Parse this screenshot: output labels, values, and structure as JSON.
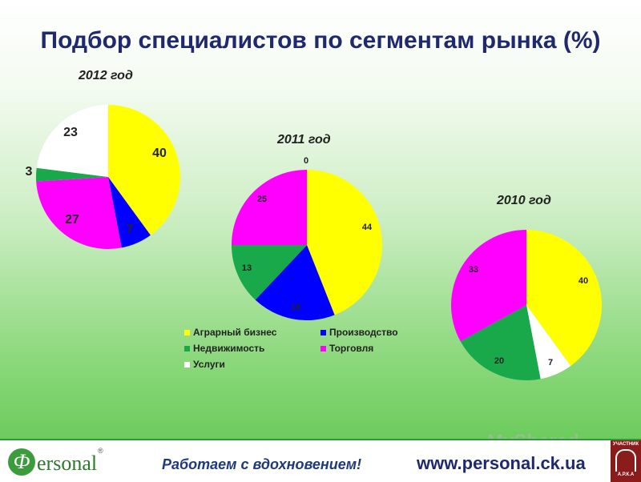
{
  "title": "Подбор специалистов по сегментам рынка (%)",
  "legend": [
    {
      "label": "Аграрный бизнес",
      "color": "#ffff00"
    },
    {
      "label": "Производство",
      "color": "#0000ff"
    },
    {
      "label": "Недвижимость",
      "color": "#19a84a"
    },
    {
      "label": "Торговля",
      "color": "#ff00ff"
    },
    {
      "label": "Услуги",
      "color": "#ffffff"
    }
  ],
  "chart_data": [
    {
      "type": "pie",
      "title": "2012 год",
      "categories": [
        "Аграрный бизнес",
        "Производство",
        "Торговля",
        "Недвижимость",
        "Услуги"
      ],
      "values": [
        40,
        7,
        27,
        3,
        23
      ],
      "colors": [
        "#ffff00",
        "#0000ff",
        "#ff00ff",
        "#19a84a",
        "#ffffff"
      ],
      "data_labels": [
        "40",
        "7",
        "27",
        "3",
        "23"
      ]
    },
    {
      "type": "pie",
      "title": "2011 год",
      "categories": [
        "Аграрный бизнес",
        "Производство",
        "Недвижимость",
        "Торговля",
        "Услуги"
      ],
      "values": [
        44,
        18,
        13,
        25,
        0
      ],
      "colors": [
        "#ffff00",
        "#0000ff",
        "#19a84a",
        "#ff00ff",
        "#ffffff"
      ],
      "data_labels": [
        "44",
        "18",
        "13",
        "25",
        "0"
      ]
    },
    {
      "type": "pie",
      "title": "2010 год",
      "categories": [
        "Аграрный бизнес",
        "Услуги",
        "Недвижимость",
        "Торговля"
      ],
      "values": [
        40,
        7,
        20,
        33
      ],
      "colors": [
        "#ffff00",
        "#ffffff",
        "#19a84a",
        "#ff00ff"
      ],
      "data_labels": [
        "40",
        "7",
        "20",
        "33"
      ]
    }
  ],
  "footer": {
    "logo_letter": "Ф",
    "logo_text": "ersonal",
    "registered": "®",
    "slogan": "Работаем с вдохновением!",
    "url": "www.personal.ck.ua",
    "badge_top": "УЧАСТНИК",
    "badge_bottom": "А.Р.К.А"
  },
  "watermark": "MyShared"
}
